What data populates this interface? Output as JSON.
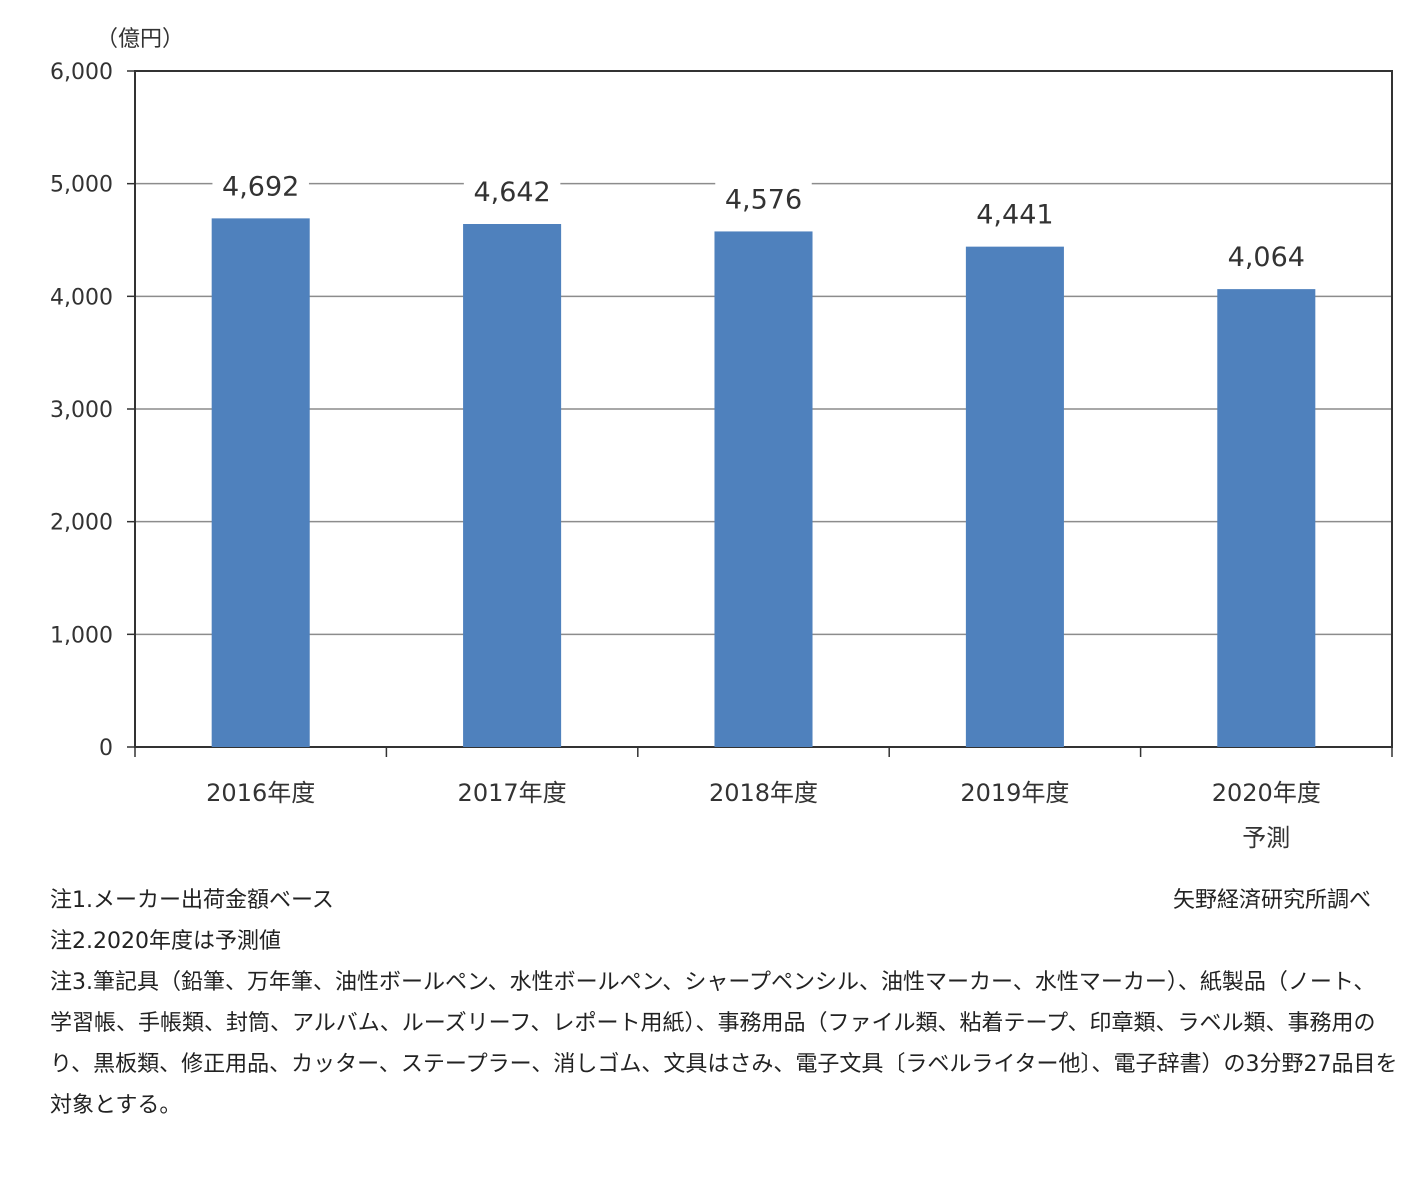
{
  "chart_data": {
    "type": "bar",
    "ylabel": "（億円）",
    "ylim": [
      0,
      6000
    ],
    "yticks": [
      0,
      1000,
      2000,
      3000,
      4000,
      5000,
      6000
    ],
    "ytick_labels": [
      "0",
      "1,000",
      "2,000",
      "3,000",
      "4,000",
      "5,000",
      "6,000"
    ],
    "categories": [
      "2016年度",
      "2017年度",
      "2018年度",
      "2019年度",
      "2020年度"
    ],
    "category_sublabels": [
      "",
      "",
      "",
      "",
      "予測"
    ],
    "values": [
      4692,
      4642,
      4576,
      4441,
      4064
    ],
    "value_labels": [
      "4,692",
      "4,642",
      "4,576",
      "4,441",
      "4,064"
    ],
    "grid": true,
    "bar_color": "#4f81bd"
  },
  "notes": [
    "注1.メーカー出荷金額ベース",
    "注2.2020年度は予測値",
    "注3.筆記具（鉛筆、万年筆、油性ボールペン、水性ボールペン、シャープペンシル、油性マーカー、水性マーカー）、紙製品（ノート、",
    "学習帳、手帳類、封筒、アルバム、ルーズリーフ、レポート用紙）、事務用品（ファイル類、粘着テープ、印章類、ラベル類、事務用の",
    "り、黒板類、修正用品、カッター、ステープラー、消しゴム、文具はさみ、電子文具〔ラベルライター他〕、電子辞書）の3分野27品目を",
    "対象とする。"
  ],
  "source": "矢野経済研究所調べ"
}
